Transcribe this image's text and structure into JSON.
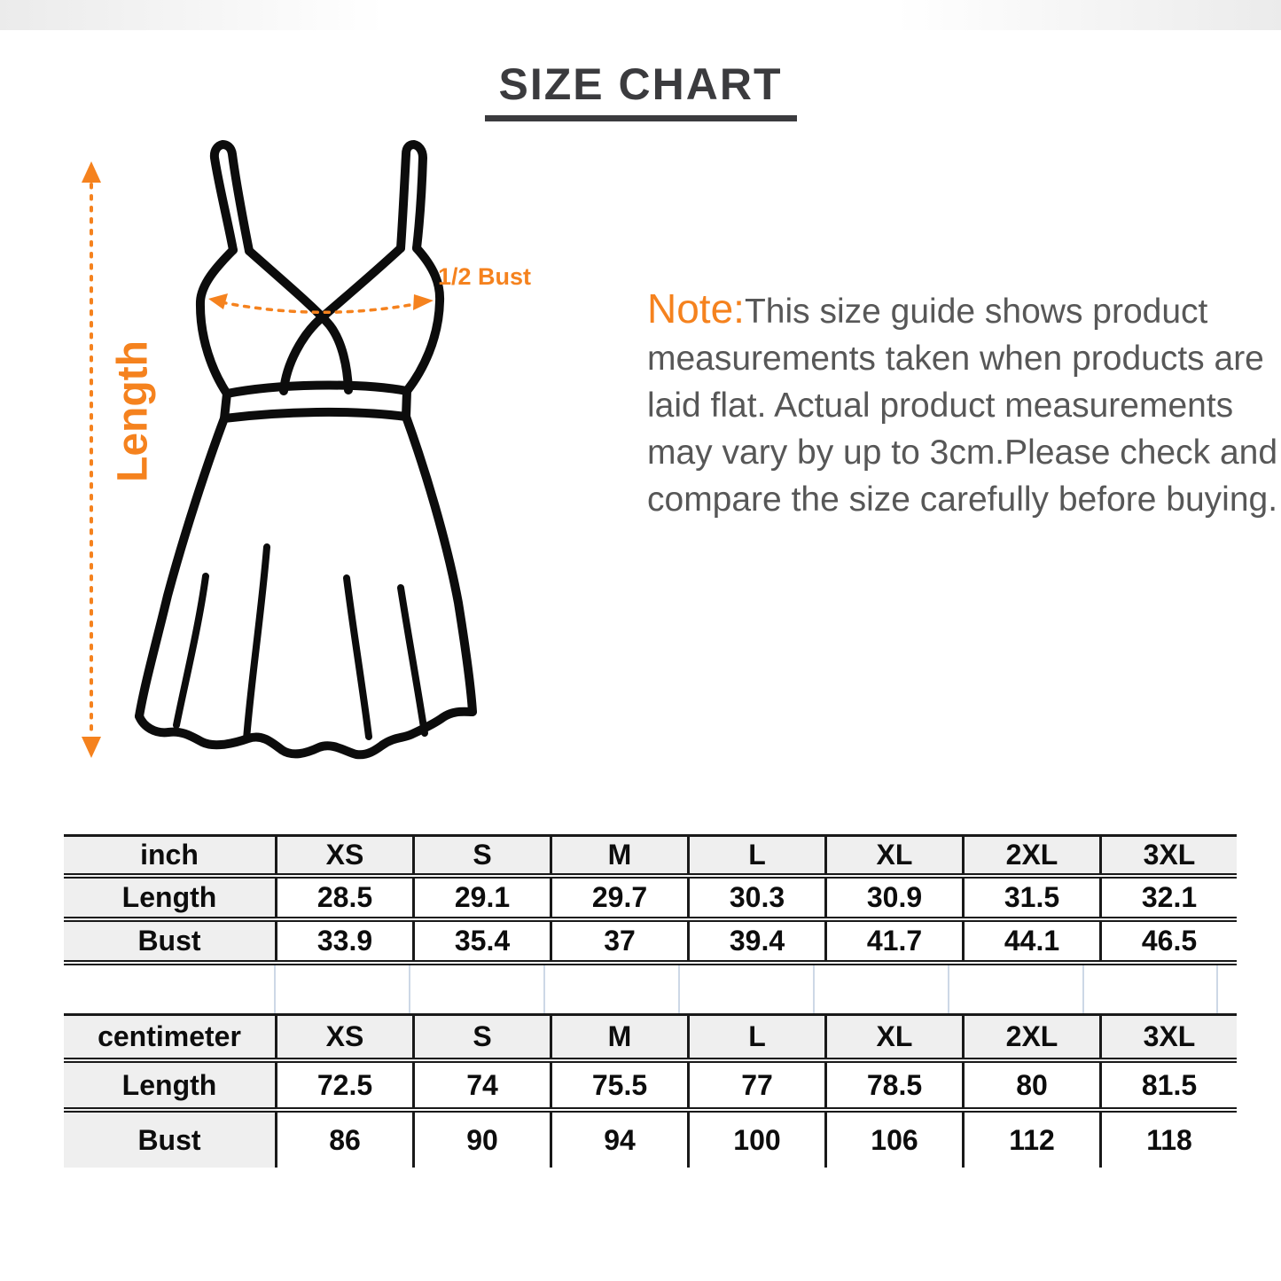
{
  "title": "SIZE CHART",
  "figure": {
    "length_label": "Length",
    "bust_label": "1/2 Bust"
  },
  "note": {
    "prefix": "Note:",
    "lines": [
      "This size guide shows product",
      "measurements taken when products are",
      "laid flat. Actual product measurements",
      "may vary by up to 3cm.Please check and",
      "compare the size carefully before buying."
    ]
  },
  "tables": [
    {
      "unit_label": "inch",
      "sizes": [
        "XS",
        "S",
        "M",
        "L",
        "XL",
        "2XL",
        "3XL"
      ],
      "rows": [
        {
          "label": "Length",
          "values": [
            "28.5",
            "29.1",
            "29.7",
            "30.3",
            "30.9",
            "31.5",
            "32.1"
          ]
        },
        {
          "label": "Bust",
          "values": [
            "33.9",
            "35.4",
            "37",
            "39.4",
            "41.7",
            "44.1",
            "46.5"
          ]
        }
      ]
    },
    {
      "unit_label": "centimeter",
      "sizes": [
        "XS",
        "S",
        "M",
        "L",
        "XL",
        "2XL",
        "3XL"
      ],
      "rows": [
        {
          "label": "Length",
          "values": [
            "72.5",
            "74",
            "75.5",
            "77",
            "78.5",
            "80",
            "81.5"
          ]
        },
        {
          "label": "Bust",
          "values": [
            "86",
            "90",
            "94",
            "100",
            "106",
            "112",
            "118"
          ]
        }
      ]
    }
  ],
  "colors": {
    "accent_orange": "#F5821E",
    "note_text": "#575757",
    "title_text": "#3B3B3E",
    "table_border": "#191919",
    "table_header_fill": "#EFEFEF",
    "gap_gridline": "#CDD8E6"
  }
}
